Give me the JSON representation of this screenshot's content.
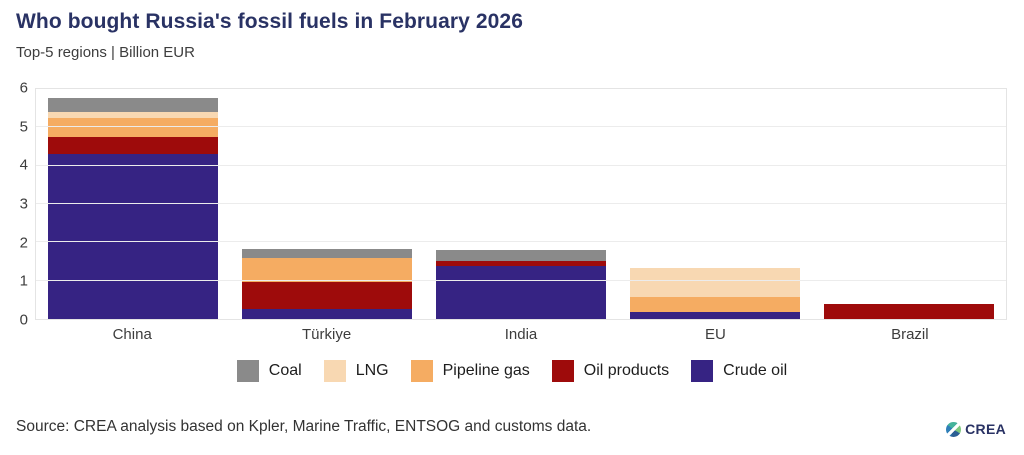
{
  "header": {
    "title": "Who bought Russia's fossil fuels in February 2026",
    "subtitle": "Top-5 regions | Billion EUR"
  },
  "chart_data": {
    "type": "bar",
    "stacked": true,
    "title": "Who bought Russia's fossil fuels in February 2026",
    "subtitle": "Top-5 regions | Billion EUR",
    "unit": "Billion EUR",
    "categories": [
      "China",
      "Türkiye",
      "India",
      "EU",
      "Brazil"
    ],
    "series": [
      {
        "name": "Crude oil",
        "color": "#362383",
        "values": [
          4.27,
          0.26,
          1.36,
          0.19,
          0
        ]
      },
      {
        "name": "Oil products",
        "color": "#9e0b0b",
        "values": [
          0.45,
          0.69,
          0.13,
          0,
          0.39
        ]
      },
      {
        "name": "Pipeline gas",
        "color": "#f5ac62",
        "values": [
          0.48,
          0.64,
          0,
          0.38,
          0
        ]
      },
      {
        "name": "LNG",
        "color": "#f8d8b2",
        "values": [
          0.16,
          0,
          0,
          0.74,
          0
        ]
      },
      {
        "name": "Coal",
        "color": "#8a8a8a",
        "values": [
          0.36,
          0.21,
          0.3,
          0,
          0
        ]
      }
    ],
    "stack_order_bottom_to_top": [
      "Crude oil",
      "Oil products",
      "Pipeline gas",
      "LNG",
      "Coal"
    ],
    "legend_order": [
      "Coal",
      "LNG",
      "Pipeline gas",
      "Oil products",
      "Crude oil"
    ],
    "ylim": [
      0,
      6
    ],
    "yticks": [
      0,
      1,
      2,
      3,
      4,
      5,
      6
    ],
    "grid": true,
    "legend_position": "bottom",
    "accent_colors": {
      "title": "#293264",
      "axis_text": "#3d3d3d",
      "gridline": "#ececec"
    }
  },
  "footer": {
    "source": "Source: CREA analysis based on Kpler, Marine Traffic, ENTSOG and customs data.",
    "logo_text": "CREA"
  }
}
